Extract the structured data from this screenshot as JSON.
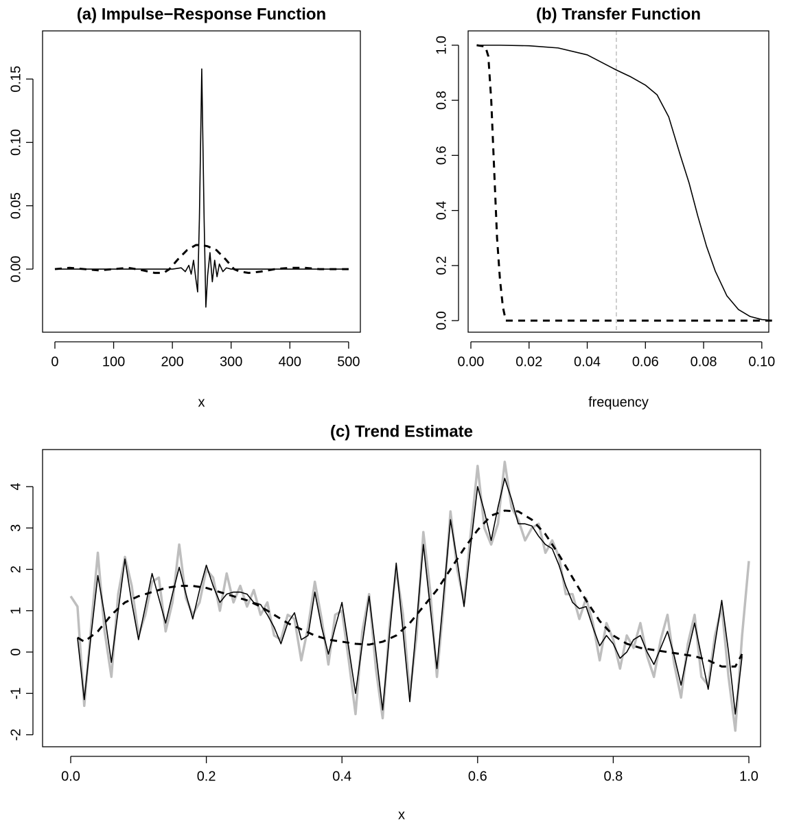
{
  "chart_data": [
    {
      "type": "line",
      "title": "(a) Impulse−Response Function",
      "xlabel": "x",
      "xlim": [
        -21,
        520
      ],
      "ylim": [
        -0.0498,
        0.188
      ],
      "xticks": [
        0,
        100,
        200,
        300,
        400,
        500
      ],
      "yticks": [
        {
          "value": 0,
          "label": "0.00"
        },
        {
          "value": 0.05,
          "label": "0.05"
        },
        {
          "value": 0.1,
          "label": "0.10"
        },
        {
          "value": 0.15,
          "label": "0.15"
        }
      ],
      "series": [
        {
          "color": "#000000",
          "linestyle": "solid",
          "x": [
            0,
            200,
            215,
            222,
            228,
            232,
            236,
            240,
            243,
            246,
            250,
            254,
            257,
            260,
            264,
            268,
            272,
            276,
            280,
            286,
            292,
            300,
            500
          ],
          "values": [
            0,
            0,
            0.001,
            -0.002,
            0.003,
            -0.004,
            0.007,
            -0.008,
            -0.018,
            0.04,
            0.158,
            0.04,
            -0.03,
            -0.005,
            0.013,
            -0.01,
            0.007,
            -0.006,
            0.004,
            -0.002,
            0.001,
            0,
            0
          ]
        },
        {
          "color": "#000000",
          "linestyle": "dashed",
          "x": [
            0,
            25,
            50,
            75,
            100,
            125,
            150,
            170,
            185,
            195,
            210,
            225,
            240,
            250,
            260,
            275,
            290,
            305,
            315,
            330,
            350,
            375,
            400,
            425,
            450,
            475,
            500
          ],
          "values": [
            0,
            0.001,
            0,
            -0.001,
            0,
            0.001,
            -0.001,
            -0.003,
            -0.003,
            0,
            0.008,
            0.015,
            0.019,
            0.019,
            0.018,
            0.015,
            0.008,
            0,
            -0.002,
            -0.003,
            -0.002,
            0,
            0.001,
            0.001,
            0,
            0,
            0
          ]
        }
      ]
    },
    {
      "type": "line",
      "title": "(b) Transfer Function",
      "xlabel": "frequency",
      "xlim": [
        -0.00094,
        0.1024
      ],
      "ylim": [
        -0.042,
        1.052
      ],
      "xticks": [
        {
          "value": 0,
          "label": "0.00"
        },
        {
          "value": 0.02,
          "label": "0.02"
        },
        {
          "value": 0.04,
          "label": "0.04"
        },
        {
          "value": 0.06,
          "label": "0.06"
        },
        {
          "value": 0.08,
          "label": "0.08"
        },
        {
          "value": 0.1,
          "label": "0.10"
        }
      ],
      "yticks": [
        {
          "value": 0,
          "label": "0.0"
        },
        {
          "value": 0.2,
          "label": "0.2"
        },
        {
          "value": 0.4,
          "label": "0.4"
        },
        {
          "value": 0.6,
          "label": "0.6"
        },
        {
          "value": 0.8,
          "label": "0.8"
        },
        {
          "value": 1,
          "label": "1.0"
        }
      ],
      "vline": 0.05,
      "vline_color": "#bebebe",
      "series": [
        {
          "color": "#000000",
          "linestyle": "solid",
          "x": [
            0.002,
            0.01,
            0.02,
            0.03,
            0.04,
            0.05,
            0.055,
            0.06,
            0.064,
            0.068,
            0.072,
            0.075,
            0.078,
            0.081,
            0.084,
            0.088,
            0.092,
            0.096,
            0.1,
            0.1035
          ],
          "values": [
            1,
            1,
            0.998,
            0.99,
            0.965,
            0.91,
            0.885,
            0.855,
            0.82,
            0.74,
            0.6,
            0.5,
            0.38,
            0.27,
            0.18,
            0.09,
            0.04,
            0.015,
            0.004,
            0.001
          ]
        },
        {
          "color": "#000000",
          "linestyle": "dashed",
          "x": [
            0.002,
            0.005,
            0.006,
            0.007,
            0.008,
            0.009,
            0.01,
            0.011,
            0.012,
            0.1035
          ],
          "values": [
            1,
            0.995,
            0.96,
            0.8,
            0.55,
            0.3,
            0.15,
            0.05,
            0,
            0
          ]
        }
      ]
    },
    {
      "type": "line",
      "title": "(c) Trend Estimate",
      "xlabel": "x",
      "xlim": [
        -0.0415,
        1.0172
      ],
      "ylim": [
        -2.29,
        4.896
      ],
      "xticks": [
        {
          "value": 0,
          "label": "0.0"
        },
        {
          "value": 0.2,
          "label": "0.2"
        },
        {
          "value": 0.4,
          "label": "0.4"
        },
        {
          "value": 0.6,
          "label": "0.6"
        },
        {
          "value": 0.8,
          "label": "0.8"
        },
        {
          "value": 1,
          "label": "1.0"
        }
      ],
      "yticks": [
        -2,
        -1,
        0,
        1,
        2,
        3,
        4
      ],
      "series": [
        {
          "color": "#bebebe",
          "linestyle": "thick",
          "x": [
            0,
            0.01,
            0.02,
            0.03,
            0.04,
            0.05,
            0.06,
            0.07,
            0.08,
            0.09,
            0.1,
            0.11,
            0.12,
            0.13,
            0.14,
            0.15,
            0.16,
            0.17,
            0.18,
            0.19,
            0.2,
            0.21,
            0.22,
            0.23,
            0.24,
            0.25,
            0.26,
            0.27,
            0.28,
            0.29,
            0.3,
            0.31,
            0.32,
            0.33,
            0.34,
            0.35,
            0.36,
            0.37,
            0.38,
            0.39,
            0.4,
            0.41,
            0.42,
            0.43,
            0.44,
            0.45,
            0.46,
            0.47,
            0.48,
            0.49,
            0.5,
            0.51,
            0.52,
            0.53,
            0.54,
            0.55,
            0.56,
            0.57,
            0.58,
            0.59,
            0.6,
            0.61,
            0.62,
            0.63,
            0.64,
            0.65,
            0.66,
            0.67,
            0.68,
            0.69,
            0.7,
            0.71,
            0.72,
            0.73,
            0.74,
            0.75,
            0.76,
            0.77,
            0.78,
            0.79,
            0.8,
            0.81,
            0.82,
            0.83,
            0.84,
            0.85,
            0.86,
            0.87,
            0.88,
            0.89,
            0.9,
            0.91,
            0.92,
            0.93,
            0.94,
            0.95,
            0.96,
            0.97,
            0.98,
            0.99,
            1
          ],
          "values": [
            1.35,
            1.1,
            -1.3,
            0.6,
            2.4,
            0.5,
            -0.6,
            1.4,
            2.3,
            1.6,
            0.4,
            0.9,
            1.7,
            1.8,
            0.5,
            1.2,
            2.6,
            1.3,
            0.9,
            1.2,
            2.0,
            1.8,
            1.0,
            1.9,
            1.2,
            1.6,
            1.1,
            1.5,
            0.9,
            1.2,
            0.4,
            0.3,
            0.9,
            0.8,
            -0.2,
            0.6,
            1.7,
            0.8,
            -0.3,
            0.9,
            1.0,
            -0.2,
            -1.5,
            0.5,
            1.4,
            -0.4,
            -1.6,
            0.6,
            2.0,
            0.9,
            -1.0,
            0.4,
            2.9,
            1.5,
            -0.6,
            1.2,
            3.4,
            2.0,
            1.2,
            2.9,
            4.5,
            3.0,
            2.6,
            3.1,
            4.6,
            3.5,
            3.2,
            2.7,
            3.0,
            3.1,
            2.4,
            2.7,
            2.3,
            1.4,
            1.4,
            0.8,
            1.3,
            0.7,
            -0.2,
            0.7,
            0.3,
            -0.4,
            0.4,
            0.1,
            0.7,
            -0.1,
            -0.6,
            0.3,
            0.9,
            -0.3,
            -1.1,
            0.2,
            0.9,
            -0.6,
            -0.8,
            0.4,
            1.1,
            -0.6,
            -1.9,
            0.4,
            2.2
          ]
        },
        {
          "color": "#000000",
          "linestyle": "solid",
          "x": [
            0.01,
            0.02,
            0.03,
            0.04,
            0.05,
            0.06,
            0.07,
            0.08,
            0.09,
            0.1,
            0.11,
            0.12,
            0.13,
            0.14,
            0.15,
            0.16,
            0.17,
            0.18,
            0.19,
            0.2,
            0.21,
            0.22,
            0.23,
            0.24,
            0.25,
            0.26,
            0.27,
            0.28,
            0.29,
            0.3,
            0.31,
            0.32,
            0.33,
            0.34,
            0.35,
            0.36,
            0.37,
            0.38,
            0.39,
            0.4,
            0.41,
            0.42,
            0.43,
            0.44,
            0.45,
            0.46,
            0.47,
            0.48,
            0.49,
            0.5,
            0.51,
            0.52,
            0.53,
            0.54,
            0.55,
            0.56,
            0.57,
            0.58,
            0.59,
            0.6,
            0.61,
            0.62,
            0.63,
            0.64,
            0.65,
            0.66,
            0.67,
            0.68,
            0.69,
            0.7,
            0.71,
            0.72,
            0.73,
            0.74,
            0.75,
            0.76,
            0.77,
            0.78,
            0.79,
            0.8,
            0.81,
            0.82,
            0.83,
            0.84,
            0.85,
            0.86,
            0.87,
            0.88,
            0.89,
            0.9,
            0.91,
            0.92,
            0.93,
            0.94,
            0.95,
            0.96,
            0.97,
            0.98,
            0.99
          ],
          "values": [
            0.35,
            -1.15,
            0.4,
            1.85,
            0.9,
            -0.25,
            1.0,
            2.25,
            1.2,
            0.3,
            1.1,
            1.9,
            1.3,
            0.7,
            1.4,
            2.05,
            1.4,
            0.8,
            1.5,
            2.1,
            1.6,
            1.2,
            1.4,
            1.45,
            1.45,
            1.4,
            1.2,
            1.15,
            0.9,
            0.6,
            0.2,
            0.7,
            0.95,
            0.3,
            0.4,
            1.45,
            0.6,
            -0.05,
            0.6,
            1.2,
            0.1,
            -1.0,
            0.2,
            1.35,
            0.0,
            -1.4,
            0.4,
            2.15,
            0.5,
            -1.2,
            0.7,
            2.6,
            1.1,
            -0.4,
            1.4,
            3.2,
            2.2,
            1.1,
            2.6,
            4.0,
            3.4,
            2.7,
            3.5,
            4.2,
            3.7,
            3.1,
            3.1,
            3.05,
            2.8,
            2.6,
            2.5,
            2.1,
            1.6,
            1.2,
            1.05,
            1.1,
            0.6,
            0.15,
            0.4,
            0.2,
            -0.15,
            0.0,
            0.3,
            0.4,
            0.0,
            -0.3,
            0.1,
            0.5,
            -0.1,
            -0.8,
            0.0,
            0.7,
            -0.1,
            -0.9,
            0.2,
            1.25,
            0.0,
            -1.5,
            -0.1
          ]
        },
        {
          "color": "#000000",
          "linestyle": "dashed",
          "x": [
            0.01,
            0.02,
            0.04,
            0.06,
            0.08,
            0.1,
            0.12,
            0.14,
            0.16,
            0.18,
            0.2,
            0.22,
            0.24,
            0.26,
            0.28,
            0.3,
            0.32,
            0.34,
            0.36,
            0.38,
            0.4,
            0.42,
            0.44,
            0.46,
            0.48,
            0.5,
            0.52,
            0.54,
            0.56,
            0.58,
            0.6,
            0.62,
            0.64,
            0.66,
            0.68,
            0.7,
            0.72,
            0.74,
            0.76,
            0.78,
            0.8,
            0.82,
            0.84,
            0.86,
            0.88,
            0.9,
            0.92,
            0.94,
            0.96,
            0.98,
            0.99
          ],
          "values": [
            0.35,
            0.25,
            0.5,
            0.9,
            1.2,
            1.35,
            1.45,
            1.55,
            1.6,
            1.6,
            1.55,
            1.45,
            1.35,
            1.25,
            1.1,
            0.9,
            0.7,
            0.55,
            0.4,
            0.3,
            0.25,
            0.2,
            0.18,
            0.25,
            0.4,
            0.7,
            1.1,
            1.5,
            2.0,
            2.5,
            2.95,
            3.3,
            3.42,
            3.4,
            3.2,
            2.85,
            2.35,
            1.8,
            1.25,
            0.75,
            0.4,
            0.2,
            0.1,
            0.05,
            0.0,
            -0.05,
            -0.1,
            -0.2,
            -0.35,
            -0.35,
            -0.05
          ]
        }
      ]
    }
  ]
}
